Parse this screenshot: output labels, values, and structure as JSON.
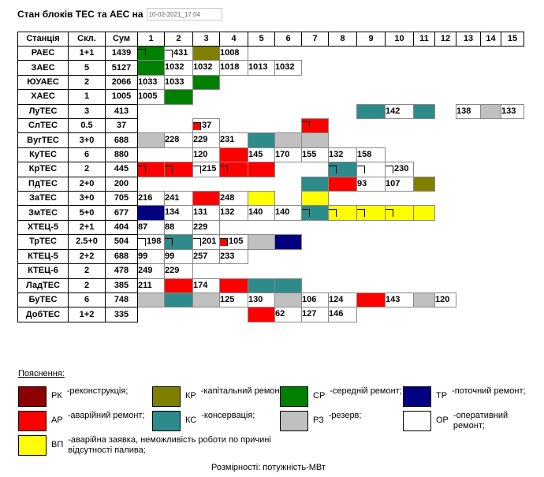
{
  "header": {
    "title": "Стан блоків ТЕС та АЕС на",
    "date_value": "10-02-2021_17:04"
  },
  "columns": [
    "Станція",
    "Скл.",
    "Сум",
    "1",
    "2",
    "3",
    "4",
    "5",
    "6",
    "7",
    "8",
    "9",
    "10",
    "11",
    "12",
    "13",
    "14",
    "15"
  ],
  "colors": {
    "RK": "#8b0000",
    "KR": "#808000",
    "SR": "#008000",
    "TR": "#000080",
    "AR": "#ff0000",
    "KS": "#2e8b8b",
    "RZ": "#c0c0c0",
    "OR": "#ffffff",
    "VP": "#ffff00"
  },
  "rows": [
    {
      "name": "РАЕС",
      "skl": "1+1",
      "sum": "1439",
      "units": [
        {
          "c": "SR",
          "mk": true
        },
        {
          "c": "",
          "t": "431",
          "mk": true
        },
        {
          "c": "KR"
        },
        {
          "c": "",
          "t": "1008"
        },
        null,
        null,
        null,
        null,
        null,
        null,
        null,
        null,
        null,
        null,
        null
      ]
    },
    {
      "name": "ЗАЕС",
      "skl": "5",
      "sum": "5127",
      "units": [
        {
          "c": "SR"
        },
        {
          "c": "OR",
          "t": "1032"
        },
        {
          "c": "OR",
          "t": "1032"
        },
        {
          "c": "OR",
          "t": "1018"
        },
        {
          "c": "OR",
          "t": "1013"
        },
        {
          "c": "OR",
          "t": "1032"
        },
        null,
        null,
        null,
        null,
        null,
        null,
        null,
        null,
        null
      ]
    },
    {
      "name": "ЮУАЕС",
      "skl": "2",
      "sum": "2066",
      "units": [
        {
          "c": "OR",
          "t": "1033"
        },
        {
          "c": "OR",
          "t": "1033"
        },
        {
          "c": "SR"
        },
        null,
        null,
        null,
        null,
        null,
        null,
        null,
        null,
        null,
        null,
        null,
        null
      ]
    },
    {
      "name": "ХАЕС",
      "skl": "1",
      "sum": "1005",
      "units": [
        {
          "c": "OR",
          "t": "1005"
        },
        {
          "c": "SR"
        },
        null,
        null,
        null,
        null,
        null,
        null,
        null,
        null,
        null,
        null,
        null,
        null,
        null
      ]
    },
    {
      "name": "ЛуТЕС",
      "skl": "3",
      "sum": "413",
      "units": [
        null,
        null,
        null,
        null,
        null,
        null,
        null,
        null,
        {
          "c": "KS"
        },
        {
          "c": "OR",
          "t": "142"
        },
        {
          "c": "KS"
        },
        null,
        {
          "c": "OR",
          "t": "138"
        },
        {
          "c": "RZ"
        },
        {
          "c": "OR",
          "t": "133"
        }
      ]
    },
    {
      "name": "СлТЕС",
      "skl": "0.5",
      "sum": "37",
      "units": [
        null,
        null,
        {
          "c": "",
          "t": "37",
          "mk": true,
          "mkc": "#ff0000"
        },
        null,
        null,
        null,
        {
          "c": "AR",
          "mk": true
        },
        null,
        null,
        null,
        null,
        null,
        null,
        null,
        null
      ]
    },
    {
      "name": "ВугТЕС",
      "skl": "3+0",
      "sum": "688",
      "units": [
        {
          "c": "RZ"
        },
        {
          "c": "OR",
          "t": "228"
        },
        {
          "c": "OR",
          "t": "229"
        },
        {
          "c": "OR",
          "t": "231"
        },
        {
          "c": "KS"
        },
        {
          "c": "RZ"
        },
        {
          "c": "RZ"
        },
        null,
        null,
        null,
        null,
        null,
        null,
        null,
        null
      ]
    },
    {
      "name": "КуТЕС",
      "skl": "6",
      "sum": "880",
      "units": [
        null,
        null,
        {
          "c": "OR",
          "t": "120"
        },
        {
          "c": "AR"
        },
        {
          "c": "OR",
          "t": "145"
        },
        {
          "c": "OR",
          "t": "170"
        },
        {
          "c": "OR",
          "t": "155"
        },
        {
          "c": "OR",
          "t": "132"
        },
        {
          "c": "OR",
          "t": "158"
        },
        null,
        null,
        null,
        null,
        null,
        null
      ]
    },
    {
      "name": "КрТЕС",
      "skl": "2",
      "sum": "445",
      "units": [
        {
          "c": "AR",
          "mk": true
        },
        {
          "c": "AR",
          "mk": true
        },
        {
          "c": "",
          "t": "215",
          "mk": true
        },
        {
          "c": "AR",
          "mk": true
        },
        {
          "c": "AR"
        },
        null,
        null,
        {
          "c": "KS",
          "mk": true
        },
        {
          "c": "",
          "mk": true
        },
        {
          "c": "",
          "t": "230",
          "mk": true
        },
        null,
        null,
        null,
        null,
        null
      ]
    },
    {
      "name": "ПдТЕС",
      "skl": "2+0",
      "sum": "200",
      "units": [
        null,
        null,
        null,
        null,
        null,
        null,
        {
          "c": "KS"
        },
        {
          "c": "AR"
        },
        {
          "c": "OR",
          "t": "93"
        },
        {
          "c": "OR",
          "t": "107"
        },
        {
          "c": "KR"
        },
        null,
        null,
        null,
        null
      ]
    },
    {
      "name": "ЗаТЕС",
      "skl": "3+0",
      "sum": "705",
      "units": [
        {
          "c": "OR",
          "t": "216"
        },
        {
          "c": "OR",
          "t": "241"
        },
        {
          "c": "AR"
        },
        {
          "c": "OR",
          "t": "248"
        },
        {
          "c": "VP"
        },
        null,
        {
          "c": "VP"
        },
        null,
        null,
        null,
        null,
        null,
        null,
        null,
        null
      ]
    },
    {
      "name": "ЗмТЕС",
      "skl": "5+0",
      "sum": "677",
      "units": [
        {
          "c": "TR"
        },
        {
          "c": "OR",
          "t": "134"
        },
        {
          "c": "OR",
          "t": "131"
        },
        {
          "c": "OR",
          "t": "132"
        },
        {
          "c": "OR",
          "t": "140"
        },
        {
          "c": "OR",
          "t": "140"
        },
        {
          "c": "KS",
          "mk": true
        },
        {
          "c": "VP",
          "mk": true
        },
        {
          "c": "VP",
          "mk": true
        },
        {
          "c": "VP",
          "mk": true
        },
        {
          "c": "VP"
        },
        null,
        null,
        null,
        null
      ]
    },
    {
      "name": "ХТЕЦ-5",
      "skl": "2+1",
      "sum": "404",
      "units": [
        {
          "c": "OR",
          "t": "87"
        },
        {
          "c": "OR",
          "t": "88"
        },
        {
          "c": "OR",
          "t": "229"
        },
        null,
        null,
        null,
        null,
        null,
        null,
        null,
        null,
        null,
        null,
        null,
        null
      ]
    },
    {
      "name": "ТрТЕС",
      "skl": "2.5+0",
      "sum": "504",
      "units": [
        {
          "c": "",
          "t": "198",
          "mk": true
        },
        {
          "c": "KS",
          "mk": true
        },
        {
          "c": "",
          "t": "201",
          "mk": true
        },
        {
          "c": "",
          "t": "105",
          "mk": true,
          "mkc": "#ff0000"
        },
        {
          "c": "RZ"
        },
        {
          "c": "TR"
        },
        null,
        null,
        null,
        null,
        null,
        null,
        null,
        null,
        null
      ]
    },
    {
      "name": "КТЕЦ-5",
      "skl": "2+2",
      "sum": "688",
      "units": [
        {
          "c": "OR",
          "t": "99"
        },
        {
          "c": "OR",
          "t": "99"
        },
        {
          "c": "OR",
          "t": "257"
        },
        {
          "c": "OR",
          "t": "233"
        },
        null,
        null,
        null,
        null,
        null,
        null,
        null,
        null,
        null,
        null,
        null
      ]
    },
    {
      "name": "КТЕЦ-6",
      "skl": "2",
      "sum": "478",
      "units": [
        {
          "c": "OR",
          "t": "249"
        },
        {
          "c": "OR",
          "t": "229"
        },
        null,
        null,
        null,
        null,
        null,
        null,
        null,
        null,
        null,
        null,
        null,
        null,
        null
      ]
    },
    {
      "name": "ЛадТЕС",
      "skl": "2",
      "sum": "385",
      "units": [
        {
          "c": "OR",
          "t": "211"
        },
        {
          "c": "AR"
        },
        {
          "c": "OR",
          "t": "174"
        },
        {
          "c": "AR"
        },
        {
          "c": "KS"
        },
        {
          "c": "KS"
        },
        null,
        null,
        null,
        null,
        null,
        null,
        null,
        null,
        null
      ]
    },
    {
      "name": "БуТЕС",
      "skl": "6",
      "sum": "748",
      "units": [
        {
          "c": "RZ"
        },
        {
          "c": "KS"
        },
        {
          "c": "RZ"
        },
        {
          "c": "OR",
          "t": "125"
        },
        {
          "c": "OR",
          "t": "130"
        },
        {
          "c": "RZ"
        },
        {
          "c": "OR",
          "t": "106"
        },
        {
          "c": "OR",
          "t": "124"
        },
        {
          "c": "AR"
        },
        {
          "c": "OR",
          "t": "143"
        },
        {
          "c": "RZ"
        },
        {
          "c": "OR",
          "t": "120"
        },
        null,
        null,
        null
      ]
    },
    {
      "name": "ДобТЕС",
      "skl": "1+2",
      "sum": "335",
      "units": [
        null,
        null,
        null,
        null,
        {
          "c": "AR"
        },
        {
          "c": "OR",
          "t": "62"
        },
        {
          "c": "OR",
          "t": "127"
        },
        {
          "c": "OR",
          "t": "146"
        },
        null,
        null,
        null,
        null,
        null,
        null,
        null
      ]
    }
  ],
  "legend": {
    "title": "Пояснення:",
    "items": [
      {
        "key": "RK",
        "code": "РК",
        "desc": "-реконструкція;"
      },
      {
        "key": "KR",
        "code": "КР",
        "desc": "-капітальний ремонт;"
      },
      {
        "key": "SR",
        "code": "СР",
        "desc": "-середній ремонт;"
      },
      {
        "key": "TR",
        "code": "ТР",
        "desc": "-поточний ремонт;"
      },
      {
        "key": "AR",
        "code": "АР",
        "desc": "-аварійний ремонт;"
      },
      {
        "key": "KS",
        "code": "КС",
        "desc": "-консервація;"
      },
      {
        "key": "RZ",
        "code": "РЗ",
        "desc": "-резерв;"
      },
      {
        "key": "OR",
        "code": "ОР",
        "desc": "-оперативний ремонт;"
      },
      {
        "key": "VP",
        "code": "ВП",
        "desc": "-аварійна заявка, неможливість роботи по причині відсутності палива;"
      }
    ]
  },
  "footer": "Розмірності: потужність-МВт"
}
